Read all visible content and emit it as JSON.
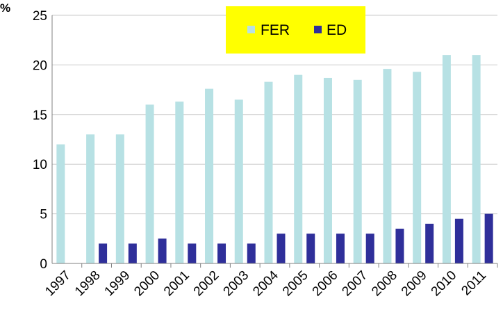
{
  "chart_data": {
    "type": "bar",
    "unit_label": "%",
    "categories": [
      "1997",
      "1998",
      "1999",
      "2000",
      "2001",
      "2002",
      "2003",
      "2004",
      "2005",
      "2006",
      "2007",
      "2008",
      "2009",
      "2010",
      "2011"
    ],
    "series": [
      {
        "name": "FER",
        "color": "#b7e1e4",
        "values": [
          12,
          13,
          13,
          16,
          16.3,
          17.6,
          16.5,
          18.3,
          19,
          18.7,
          18.5,
          19.6,
          19.3,
          21,
          21
        ]
      },
      {
        "name": "ED",
        "color": "#2f2f9a",
        "values": [
          0,
          2,
          2,
          2.5,
          2,
          2,
          2,
          3,
          3,
          3,
          3,
          3.5,
          4,
          4.5,
          5
        ]
      }
    ],
    "ylim": [
      0,
      25
    ],
    "yticks": [
      "0",
      "5",
      "10",
      "15",
      "20",
      "25"
    ],
    "grid": "horizontal",
    "legend_position": "top-center",
    "legend_background": "#ffff00"
  }
}
